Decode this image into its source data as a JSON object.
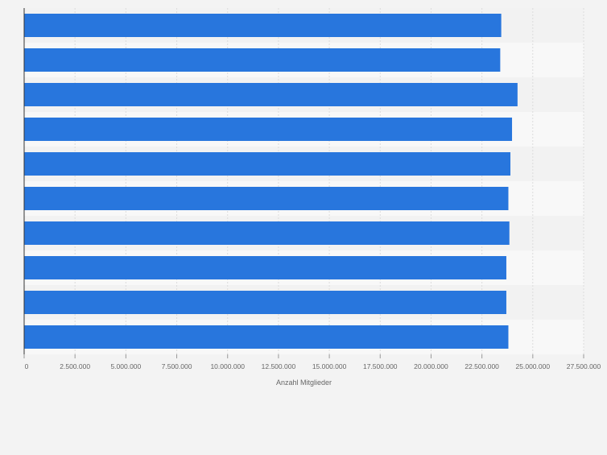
{
  "colors": {
    "background": "#f3f3f3",
    "band_light": "#f8f8f8",
    "band_dark": "#f2f2f2",
    "bar": "#2876dd",
    "grid": "#dcdcdc",
    "axis": "#333333",
    "tick_text": "#666666"
  },
  "chart_data": {
    "type": "bar",
    "orientation": "horizontal",
    "title": "",
    "xlabel": "Anzahl Mitglieder",
    "ylabel": "",
    "categories": [
      "",
      "",
      "",
      "",
      "",
      "",
      "",
      "",
      "",
      ""
    ],
    "values": [
      23450000,
      23400000,
      24250000,
      23980000,
      23900000,
      23800000,
      23850000,
      23700000,
      23700000,
      23800000
    ],
    "xlim": [
      0,
      27500000
    ],
    "x_ticks": [
      0,
      2500000,
      5000000,
      7500000,
      10000000,
      12500000,
      15000000,
      17500000,
      20000000,
      22500000,
      25000000,
      27500000
    ],
    "x_tick_labels": [
      "0",
      "2.500.000",
      "5.000.000",
      "7.500.000",
      "10.000.000",
      "12.500.000",
      "15.000.000",
      "17.500.000",
      "20.000.000",
      "22.500.000",
      "25.000.000",
      "27.500.000"
    ],
    "grid": true,
    "legend": "none"
  }
}
